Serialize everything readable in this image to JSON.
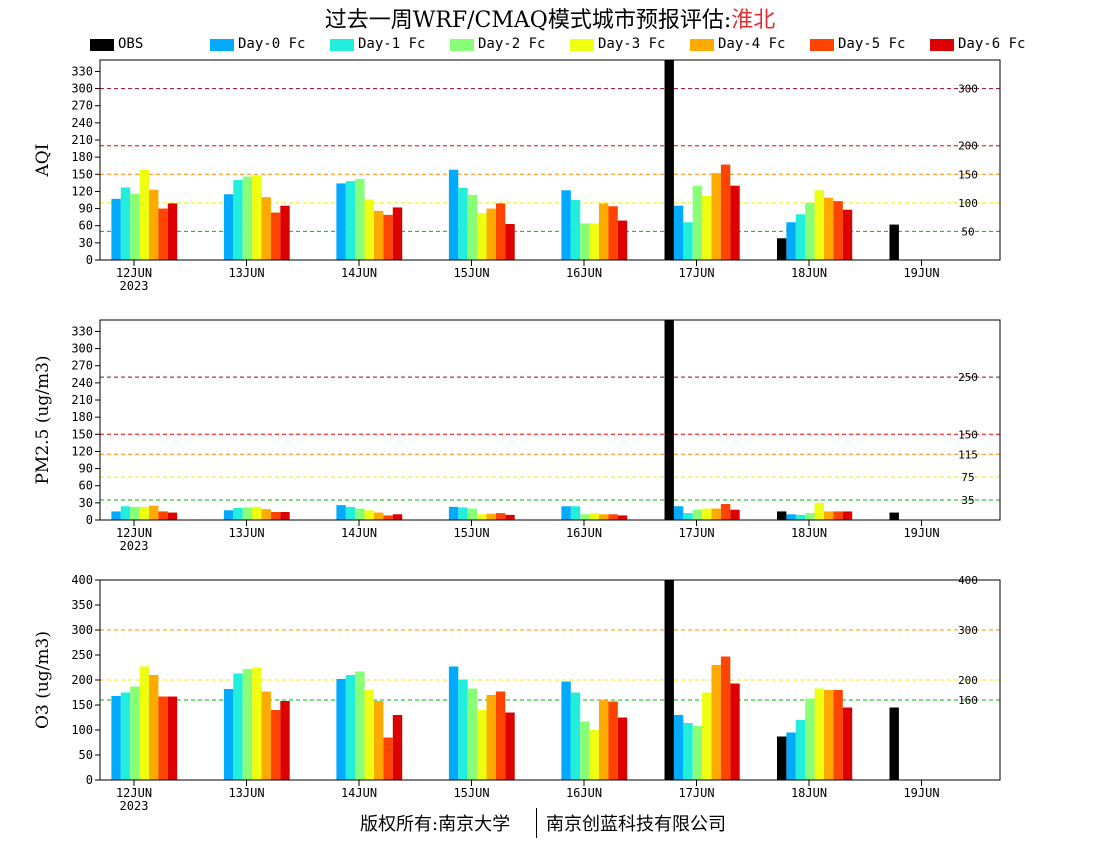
{
  "title": {
    "prefix": "过去一周WRF/CMAQ模式城市预报评估:",
    "city": "淮北"
  },
  "footer": {
    "left": "版权所有:南京大学",
    "right": "南京创蓝科技有限公司"
  },
  "series": [
    {
      "name": "OBS",
      "color": "#000000"
    },
    {
      "name": "Day-0 Fc",
      "color": "#00aaff"
    },
    {
      "name": "Day-1 Fc",
      "color": "#22eedd"
    },
    {
      "name": "Day-2 Fc",
      "color": "#88ff77"
    },
    {
      "name": "Day-3 Fc",
      "color": "#eeff11"
    },
    {
      "name": "Day-4 Fc",
      "color": "#ffaa00"
    },
    {
      "name": "Day-5 Fc",
      "color": "#ff4400"
    },
    {
      "name": "Day-6 Fc",
      "color": "#dd0000"
    }
  ],
  "chart_data": [
    {
      "type": "bar",
      "ylabel": "AQI",
      "ylim": [
        0,
        350
      ],
      "yticks": [
        0,
        30,
        60,
        90,
        120,
        150,
        180,
        210,
        240,
        270,
        300,
        330
      ],
      "categories": [
        "12JUN",
        "13JUN",
        "14JUN",
        "15JUN",
        "16JUN",
        "17JUN",
        "18JUN",
        "19JUN"
      ],
      "year_label": "2023",
      "series_values": [
        [
          null,
          null,
          null,
          null,
          null,
          350,
          38,
          62
        ],
        [
          107,
          115,
          134,
          158,
          122,
          95,
          66,
          null
        ],
        [
          127,
          140,
          138,
          126,
          105,
          66,
          80,
          null
        ],
        [
          116,
          146,
          142,
          114,
          64,
          130,
          100,
          null
        ],
        [
          158,
          148,
          106,
          82,
          64,
          112,
          122,
          null
        ],
        [
          123,
          110,
          86,
          90,
          99,
          152,
          109,
          null
        ],
        [
          90,
          83,
          79,
          99,
          94,
          167,
          103,
          null
        ],
        [
          99,
          95,
          92,
          63,
          69,
          130,
          88,
          null
        ]
      ],
      "reference_lines": [
        {
          "value": 300,
          "label": "300",
          "color": "#990033"
        },
        {
          "value": 200,
          "label": "200",
          "color": "#ee0000"
        },
        {
          "value": 150,
          "label": "150",
          "color": "#ff8800"
        },
        {
          "value": 100,
          "label": "100",
          "color": "#eeee00"
        },
        {
          "value": 50,
          "label": "50",
          "color": "#00bb00"
        }
      ]
    },
    {
      "type": "bar",
      "ylabel": "PM2.5 (ug/m3)",
      "ylim": [
        0,
        350
      ],
      "yticks": [
        0,
        30,
        60,
        90,
        120,
        150,
        180,
        210,
        240,
        270,
        300,
        330
      ],
      "categories": [
        "12JUN",
        "13JUN",
        "14JUN",
        "15JUN",
        "16JUN",
        "17JUN",
        "18JUN",
        "19JUN"
      ],
      "year_label": "2023",
      "series_values": [
        [
          null,
          null,
          null,
          null,
          null,
          350,
          15,
          13
        ],
        [
          15,
          17,
          26,
          23,
          24,
          24,
          10,
          null
        ],
        [
          24,
          21,
          23,
          22,
          24,
          12,
          9,
          null
        ],
        [
          23,
          22,
          20,
          20,
          10,
          18,
          12,
          null
        ],
        [
          23,
          23,
          17,
          10,
          12,
          20,
          30,
          null
        ],
        [
          25,
          19,
          13,
          11,
          10,
          20,
          15,
          null
        ],
        [
          15,
          14,
          8,
          12,
          10,
          28,
          15,
          null
        ],
        [
          13,
          14,
          10,
          9,
          8,
          18,
          15,
          null
        ]
      ],
      "reference_lines": [
        {
          "value": 250,
          "label": "250",
          "color": "#990033"
        },
        {
          "value": 150,
          "label": "150",
          "color": "#ee0000"
        },
        {
          "value": 115,
          "label": "115",
          "color": "#ff8800"
        },
        {
          "value": 75,
          "label": "75",
          "color": "#eeee00"
        },
        {
          "value": 35,
          "label": "35",
          "color": "#00bb00"
        }
      ]
    },
    {
      "type": "bar",
      "ylabel": "O3 (ug/m3)",
      "ylim": [
        0,
        400
      ],
      "yticks": [
        0,
        50,
        100,
        150,
        200,
        250,
        300,
        350,
        400
      ],
      "categories": [
        "12JUN",
        "13JUN",
        "14JUN",
        "15JUN",
        "16JUN",
        "17JUN",
        "18JUN",
        "19JUN"
      ],
      "year_label": "2023",
      "series_values": [
        [
          null,
          null,
          null,
          null,
          null,
          400,
          87,
          145
        ],
        [
          168,
          182,
          202,
          227,
          197,
          130,
          95,
          null
        ],
        [
          175,
          213,
          210,
          201,
          175,
          114,
          120,
          null
        ],
        [
          187,
          222,
          217,
          183,
          117,
          108,
          163,
          null
        ],
        [
          227,
          225,
          180,
          140,
          100,
          175,
          183,
          null
        ],
        [
          210,
          177,
          158,
          170,
          160,
          230,
          180,
          null
        ],
        [
          167,
          140,
          85,
          177,
          157,
          247,
          180,
          null
        ],
        [
          167,
          158,
          130,
          135,
          125,
          193,
          145,
          null
        ]
      ],
      "reference_lines": [
        {
          "value": 400,
          "label": "400",
          "color": "#990033"
        },
        {
          "value": 300,
          "label": "300",
          "color": "#ff8800"
        },
        {
          "value": 200,
          "label": "200",
          "color": "#eeee00"
        },
        {
          "value": 160,
          "label": "160",
          "color": "#00bb00"
        }
      ]
    }
  ]
}
